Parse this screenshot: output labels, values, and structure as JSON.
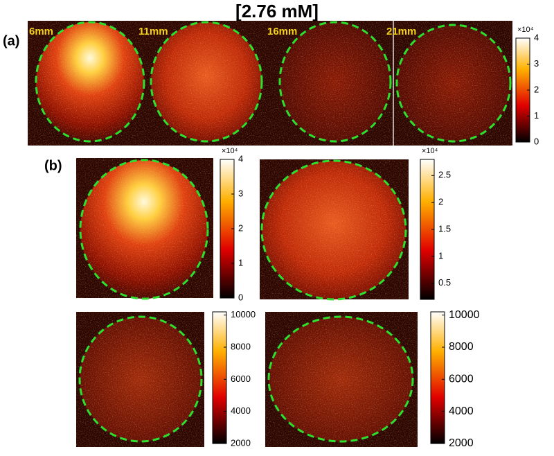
{
  "title": "[2.76 mM]",
  "panel_a": {
    "label": "(a)",
    "distances": [
      "6mm",
      "11mm",
      "16mm",
      "21mm"
    ],
    "colorbar": {
      "lim": [
        0,
        4
      ],
      "ticks": [
        0,
        1,
        2,
        3,
        4
      ],
      "multiplier": "×10⁴"
    }
  },
  "panel_b": {
    "label": "(b)",
    "colorbars": [
      {
        "lim": [
          0,
          4
        ],
        "ticks": [
          0,
          1,
          2,
          3,
          4
        ],
        "multiplier": "×10⁴"
      },
      {
        "lim": [
          0.2,
          2.8
        ],
        "ticks": [
          0.5,
          1,
          1.5,
          2,
          2.5
        ],
        "multiplier": "×10⁴"
      },
      {
        "lim": [
          2000,
          10200
        ],
        "ticks": [
          2000,
          4000,
          6000,
          8000,
          10000
        ]
      },
      {
        "lim": [
          2000,
          10200
        ],
        "ticks": [
          2000,
          4000,
          6000,
          8000,
          10000
        ]
      }
    ]
  }
}
